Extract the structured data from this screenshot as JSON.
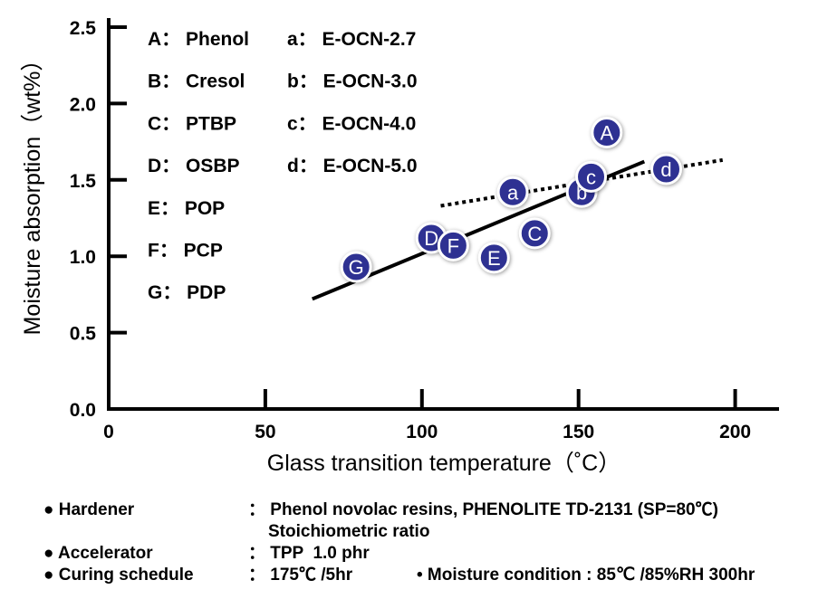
{
  "chart_data": {
    "type": "scatter",
    "xlabel": "Glass transition temperature（˚C）",
    "ylabel": "Moisture absorption（wt%）",
    "xlim": [
      0,
      214
    ],
    "ylim": [
      0,
      2.5
    ],
    "xticks": [
      "0",
      "50",
      "100",
      "150",
      "200"
    ],
    "yticks": [
      "0.0",
      "0.5",
      "1.0",
      "1.5",
      "2.0",
      "2.5"
    ],
    "grid": false,
    "colors": {
      "marker": "#2E3192",
      "line": "#000000"
    },
    "points": [
      {
        "label": "A",
        "x": 159,
        "y": 1.81
      },
      {
        "label": "C",
        "x": 136,
        "y": 1.15
      },
      {
        "label": "D",
        "x": 103,
        "y": 1.12
      },
      {
        "label": "F",
        "x": 110,
        "y": 1.07
      },
      {
        "label": "E",
        "x": 123,
        "y": 0.99
      },
      {
        "label": "G",
        "x": 79,
        "y": 0.93
      },
      {
        "label": "a",
        "x": 129,
        "y": 1.42
      },
      {
        "label": "b",
        "x": 151,
        "y": 1.42
      },
      {
        "label": "d",
        "x": 178,
        "y": 1.57
      },
      {
        "label": "c",
        "x": 154,
        "y": 1.52
      }
    ],
    "trendlines": [
      {
        "name": "phenol-hardener",
        "style": "solid",
        "x": [
          65,
          171
        ],
        "y": [
          0.72,
          1.62
        ]
      },
      {
        "name": "e-ocn",
        "style": "dotted",
        "x": [
          106,
          196
        ],
        "y": [
          1.33,
          1.63
        ]
      }
    ],
    "legend": {
      "left": [
        "A： Phenol",
        "B： Cresol",
        "C： PTBP",
        "D： OSBP",
        "E： POP",
        "F： PCP",
        "G： PDP"
      ],
      "right": [
        "a： E-OCN-2.7",
        "b： E-OCN-3.0",
        "c： E-OCN-4.0",
        "d： E-OCN-5.0"
      ]
    }
  },
  "notes": {
    "hardener_key": "● Hardener",
    "hardener_val": "： Phenol novolac resins, PHENOLITE TD-2131 (SP=80℃)",
    "hardener_val2": "Stoichiometric ratio",
    "accel_key": "● Accelerator",
    "accel_val": "： TPP  1.0 phr",
    "curing_key": "● Curing schedule",
    "curing_val": "： 175℃ /5hr",
    "moisture": "• Moisture condition : 85℃ /85%RH 300hr"
  }
}
